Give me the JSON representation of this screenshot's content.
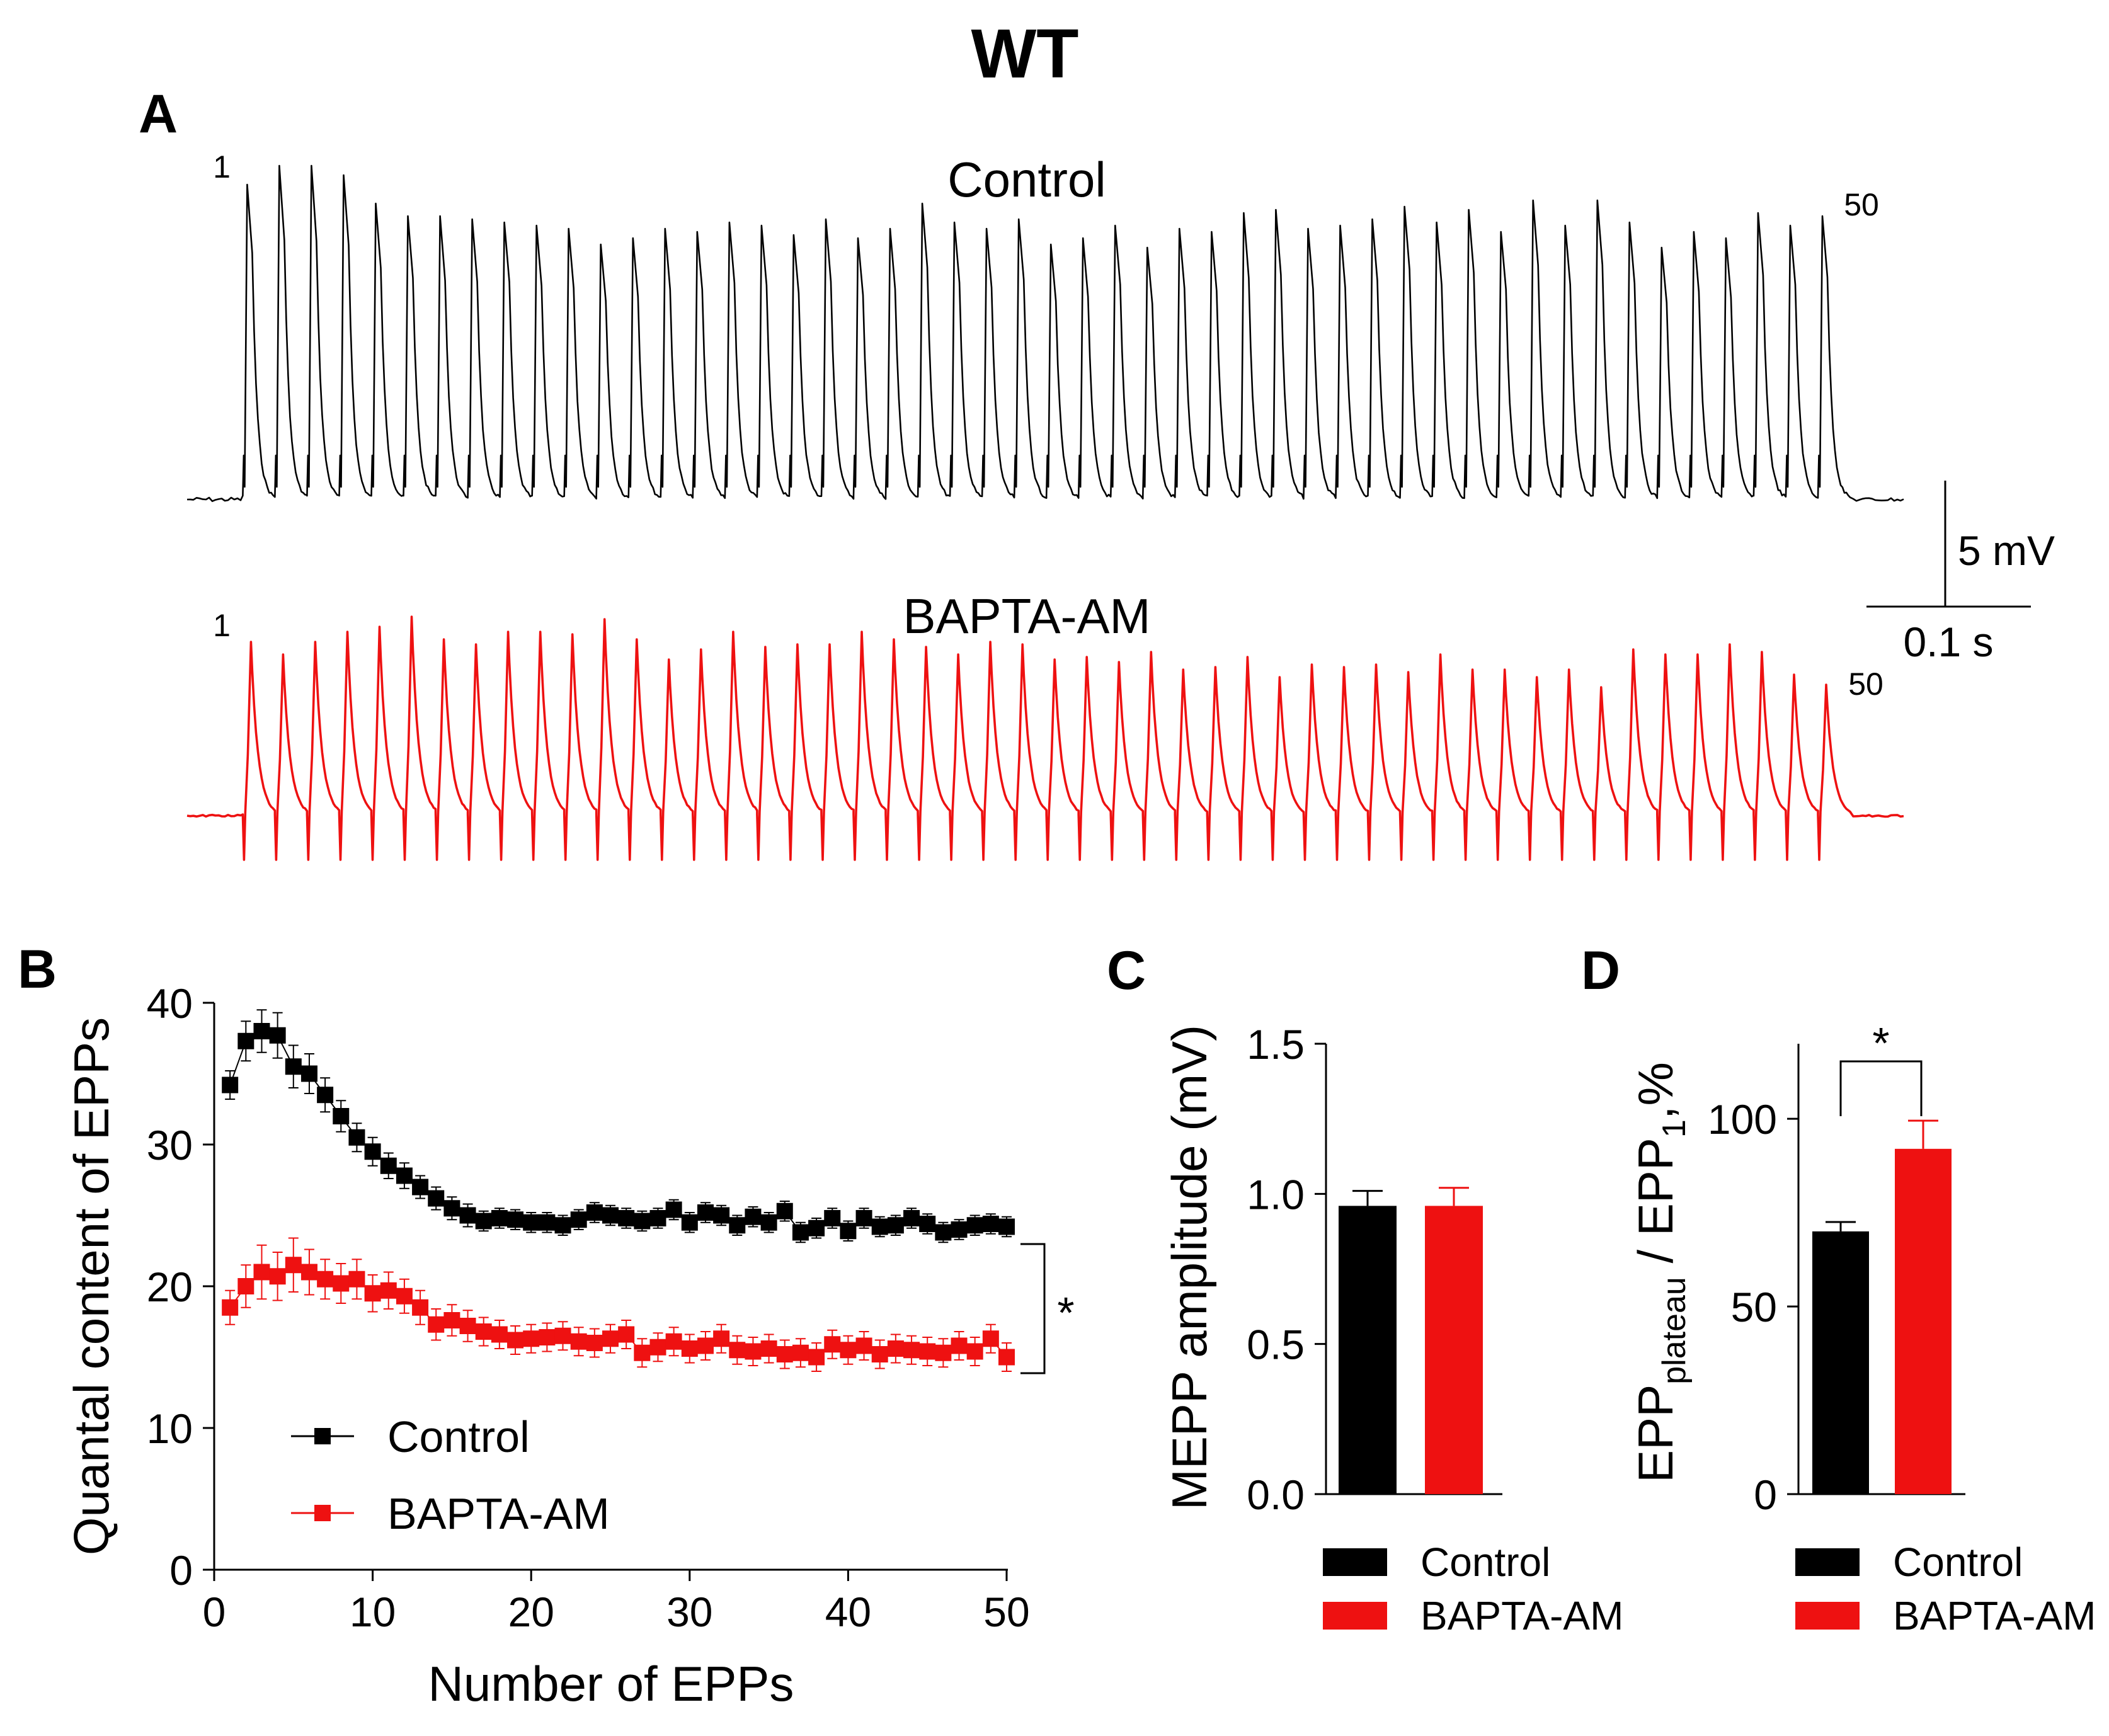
{
  "figure": {
    "title": "WT",
    "colors": {
      "control": "#000000",
      "bapta": "#ee1111"
    }
  },
  "panel_a": {
    "letter": "A",
    "control_label": "Control",
    "bapta_label": "BAPTA-AM",
    "first_marker": "1",
    "last_marker": "50",
    "scale_v_label": "5 mV",
    "scale_t_label": "0.1 s"
  },
  "panel_b": {
    "letter": "B"
  },
  "panel_c": {
    "letter": "C"
  },
  "panel_d": {
    "letter": "D"
  },
  "chart_data": [
    {
      "panel": "A",
      "type": "line",
      "title": "",
      "series": [
        {
          "name": "Control",
          "pulses": 50,
          "peak_amplitude_mV": [
            10.0,
            10.6,
            10.6,
            10.3,
            9.4,
            9.0,
            9.0,
            8.9,
            8.8,
            8.7,
            8.6,
            8.1,
            8.3,
            8.6,
            8.5,
            8.8,
            8.7,
            8.4,
            8.9,
            8.3,
            8.6,
            9.4,
            8.8,
            8.6,
            8.9,
            8.1,
            8.3,
            8.7,
            8.0,
            8.6,
            8.5,
            9.1,
            9.2,
            8.6,
            8.7,
            8.9,
            9.3,
            8.8,
            9.2,
            8.5,
            9.5,
            8.7,
            9.5,
            8.8,
            8.0,
            8.5,
            8.3,
            9.1,
            8.7,
            9.0
          ]
        },
        {
          "name": "BAPTA-AM",
          "pulses": 50,
          "peak_amplitude_mV": [
            6.9,
            6.4,
            6.9,
            7.3,
            7.5,
            7.9,
            7.0,
            6.8,
            7.3,
            7.3,
            7.2,
            7.8,
            7.0,
            6.2,
            6.6,
            7.3,
            6.7,
            6.8,
            6.8,
            7.3,
            7.0,
            6.7,
            6.4,
            6.9,
            6.8,
            6.2,
            6.3,
            6.1,
            6.5,
            5.8,
            5.9,
            6.3,
            5.5,
            6.0,
            5.9,
            6.0,
            5.7,
            6.4,
            5.8,
            5.8,
            5.5,
            5.8,
            5.1,
            6.6,
            6.4,
            6.4,
            6.8,
            6.5,
            5.6,
            5.2
          ]
        }
      ]
    },
    {
      "panel": "B",
      "type": "line",
      "title": "",
      "xlabel": "Number of EPPs",
      "ylabel": "Quantal content of EPPs",
      "xlim": [
        0,
        50
      ],
      "ylim": [
        0,
        40
      ],
      "xticks": [
        0,
        10,
        20,
        30,
        40,
        50
      ],
      "yticks": [
        0,
        10,
        20,
        30,
        40
      ],
      "legend_position": "bottom-left",
      "annotation": "*",
      "x": [
        1,
        2,
        3,
        4,
        5,
        6,
        7,
        8,
        9,
        10,
        11,
        12,
        13,
        14,
        15,
        16,
        17,
        18,
        19,
        20,
        21,
        22,
        23,
        24,
        25,
        26,
        27,
        28,
        29,
        30,
        31,
        32,
        33,
        34,
        35,
        36,
        37,
        38,
        39,
        40,
        41,
        42,
        43,
        44,
        45,
        46,
        47,
        48,
        49,
        50
      ],
      "series": [
        {
          "name": "Control",
          "values": [
            34.2,
            37.3,
            38.0,
            37.7,
            35.5,
            35.0,
            33.5,
            32.0,
            30.5,
            29.5,
            28.5,
            27.8,
            27.0,
            26.2,
            25.5,
            25.0,
            24.6,
            24.8,
            24.7,
            24.5,
            24.5,
            24.3,
            24.7,
            25.2,
            25.0,
            24.8,
            24.6,
            24.8,
            25.4,
            24.5,
            25.2,
            25.0,
            24.3,
            24.9,
            24.5,
            25.3,
            23.8,
            24.1,
            24.8,
            23.9,
            24.8,
            24.2,
            24.3,
            24.8,
            24.4,
            23.8,
            24.0,
            24.3,
            24.4,
            24.2
          ],
          "errors": [
            1.0,
            1.4,
            1.5,
            1.6,
            1.5,
            1.4,
            1.2,
            1.1,
            1.0,
            1.0,
            0.9,
            0.9,
            0.8,
            0.8,
            0.8,
            0.8,
            0.7,
            0.7,
            0.7,
            0.7,
            0.7,
            0.7,
            0.7,
            0.7,
            0.7,
            0.7,
            0.7,
            0.7,
            0.7,
            0.7,
            0.7,
            0.7,
            0.7,
            0.7,
            0.7,
            0.7,
            0.7,
            0.7,
            0.7,
            0.7,
            0.7,
            0.7,
            0.7,
            0.7,
            0.7,
            0.7,
            0.7,
            0.7,
            0.7,
            0.7
          ]
        },
        {
          "name": "BAPTA-AM",
          "values": [
            18.5,
            20.0,
            21.0,
            20.7,
            21.5,
            21.0,
            20.5,
            20.2,
            20.5,
            19.5,
            19.7,
            19.3,
            18.5,
            17.3,
            17.6,
            17.2,
            16.8,
            16.6,
            16.2,
            16.3,
            16.4,
            16.5,
            16.1,
            16.0,
            16.3,
            16.6,
            15.3,
            15.7,
            16.1,
            15.6,
            15.8,
            16.3,
            15.5,
            15.4,
            15.6,
            15.2,
            15.3,
            15.0,
            15.9,
            15.5,
            15.8,
            15.2,
            15.6,
            15.5,
            15.4,
            15.3,
            15.8,
            15.4,
            16.3,
            15.0
          ],
          "errors": [
            1.2,
            1.5,
            1.9,
            1.7,
            1.9,
            1.6,
            1.4,
            1.4,
            1.4,
            1.3,
            1.3,
            1.2,
            1.2,
            1.1,
            1.1,
            1.1,
            1.0,
            1.0,
            1.0,
            1.0,
            1.0,
            1.0,
            1.0,
            1.0,
            1.0,
            1.0,
            1.0,
            1.0,
            1.0,
            1.0,
            1.0,
            1.0,
            1.0,
            1.0,
            1.0,
            1.0,
            1.0,
            1.0,
            1.0,
            1.0,
            1.0,
            1.0,
            1.0,
            1.0,
            1.0,
            1.0,
            1.0,
            1.0,
            1.0,
            1.0
          ]
        }
      ]
    },
    {
      "panel": "C",
      "type": "bar",
      "title": "",
      "xlabel": "",
      "ylabel": "MEPP amplitude (mV)",
      "ylim": [
        0,
        1.5
      ],
      "yticks": [
        "0.0",
        "0.5",
        "1.0",
        "1.5"
      ],
      "legend_position": "bottom",
      "categories": [
        "Control",
        "BAPTA-AM"
      ],
      "values": [
        0.96,
        0.96
      ],
      "errors": [
        0.05,
        0.06
      ]
    },
    {
      "panel": "D",
      "type": "bar",
      "title": "",
      "xlabel": "",
      "ylabel": {
        "base1": "EPP",
        "sub1": "plateau",
        "mid": " / EPP",
        "sub2": "1",
        "tail": ",%"
      },
      "ylim": [
        0,
        120
      ],
      "yticks": [
        "0",
        "50",
        "100"
      ],
      "legend_position": "bottom",
      "annotation": "*",
      "categories": [
        "Control",
        "BAPTA-AM"
      ],
      "values": [
        70,
        92
      ],
      "errors": [
        2.5,
        7.5
      ]
    }
  ]
}
